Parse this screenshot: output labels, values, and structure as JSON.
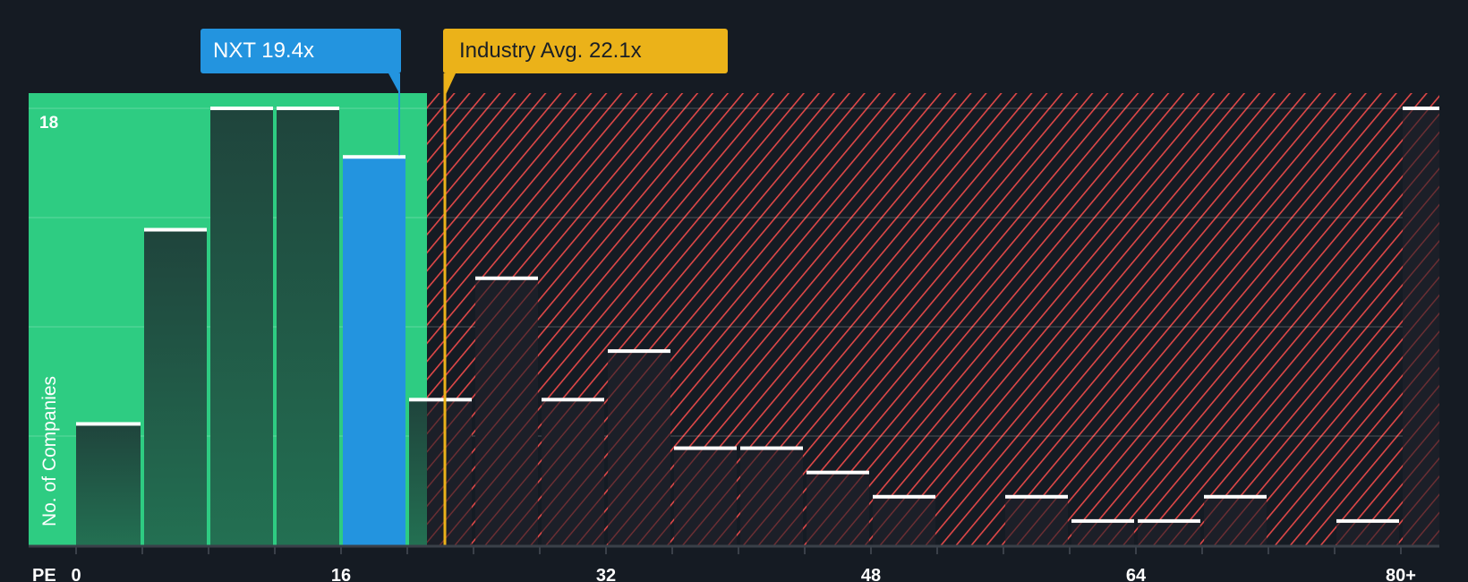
{
  "callouts": {
    "company": {
      "label": "NXT 19.4x",
      "value": 19.4,
      "color": "#2394df"
    },
    "industry": {
      "label": "Industry Avg. 22.1x",
      "value": 22.1,
      "color": "#ebb219"
    }
  },
  "axis": {
    "x_label": "PE",
    "y_label": "No. of Companies",
    "y_top_tick": "18",
    "x_ticks": [
      "0",
      "16",
      "32",
      "48",
      "64",
      "80+"
    ]
  },
  "colors": {
    "background": "#151b23",
    "fair_region": "#2ecc82",
    "over_region_hatch": "#e04848",
    "company_bar": "#2394df",
    "bar_dark": "#1f4a3e",
    "bar_top": "#ffffff"
  },
  "chart_data": {
    "type": "bar",
    "title": "",
    "xlabel": "PE",
    "ylabel": "No. of Companies",
    "categories": [
      "0-4",
      "4-8",
      "8-12",
      "12-16",
      "16-20",
      "20-24",
      "24-28",
      "28-32",
      "32-36",
      "36-40",
      "40-44",
      "44-48",
      "48-52",
      "52-56",
      "56-60",
      "60-64",
      "64-68",
      "68-72",
      "72-76",
      "76-80",
      "80+"
    ],
    "bin_starts": [
      0,
      4,
      8,
      12,
      16,
      20,
      24,
      28,
      32,
      36,
      40,
      44,
      48,
      52,
      56,
      60,
      64,
      68,
      72,
      76,
      80
    ],
    "values": [
      5,
      13,
      18,
      18,
      16,
      6,
      11,
      6,
      8,
      4,
      4,
      3,
      2,
      0,
      2,
      1,
      1,
      2,
      0,
      1,
      18
    ],
    "highlight_bin": "16-20",
    "ylim": [
      0,
      18
    ],
    "gridlines": [
      4.5,
      9,
      13.5,
      18
    ],
    "x_ticks": [
      0,
      16,
      32,
      48,
      64,
      80
    ],
    "company_pe": 19.4,
    "industry_avg_pe": 22.1,
    "fair_region_end": 21.5,
    "grid": true,
    "legend": "none"
  }
}
